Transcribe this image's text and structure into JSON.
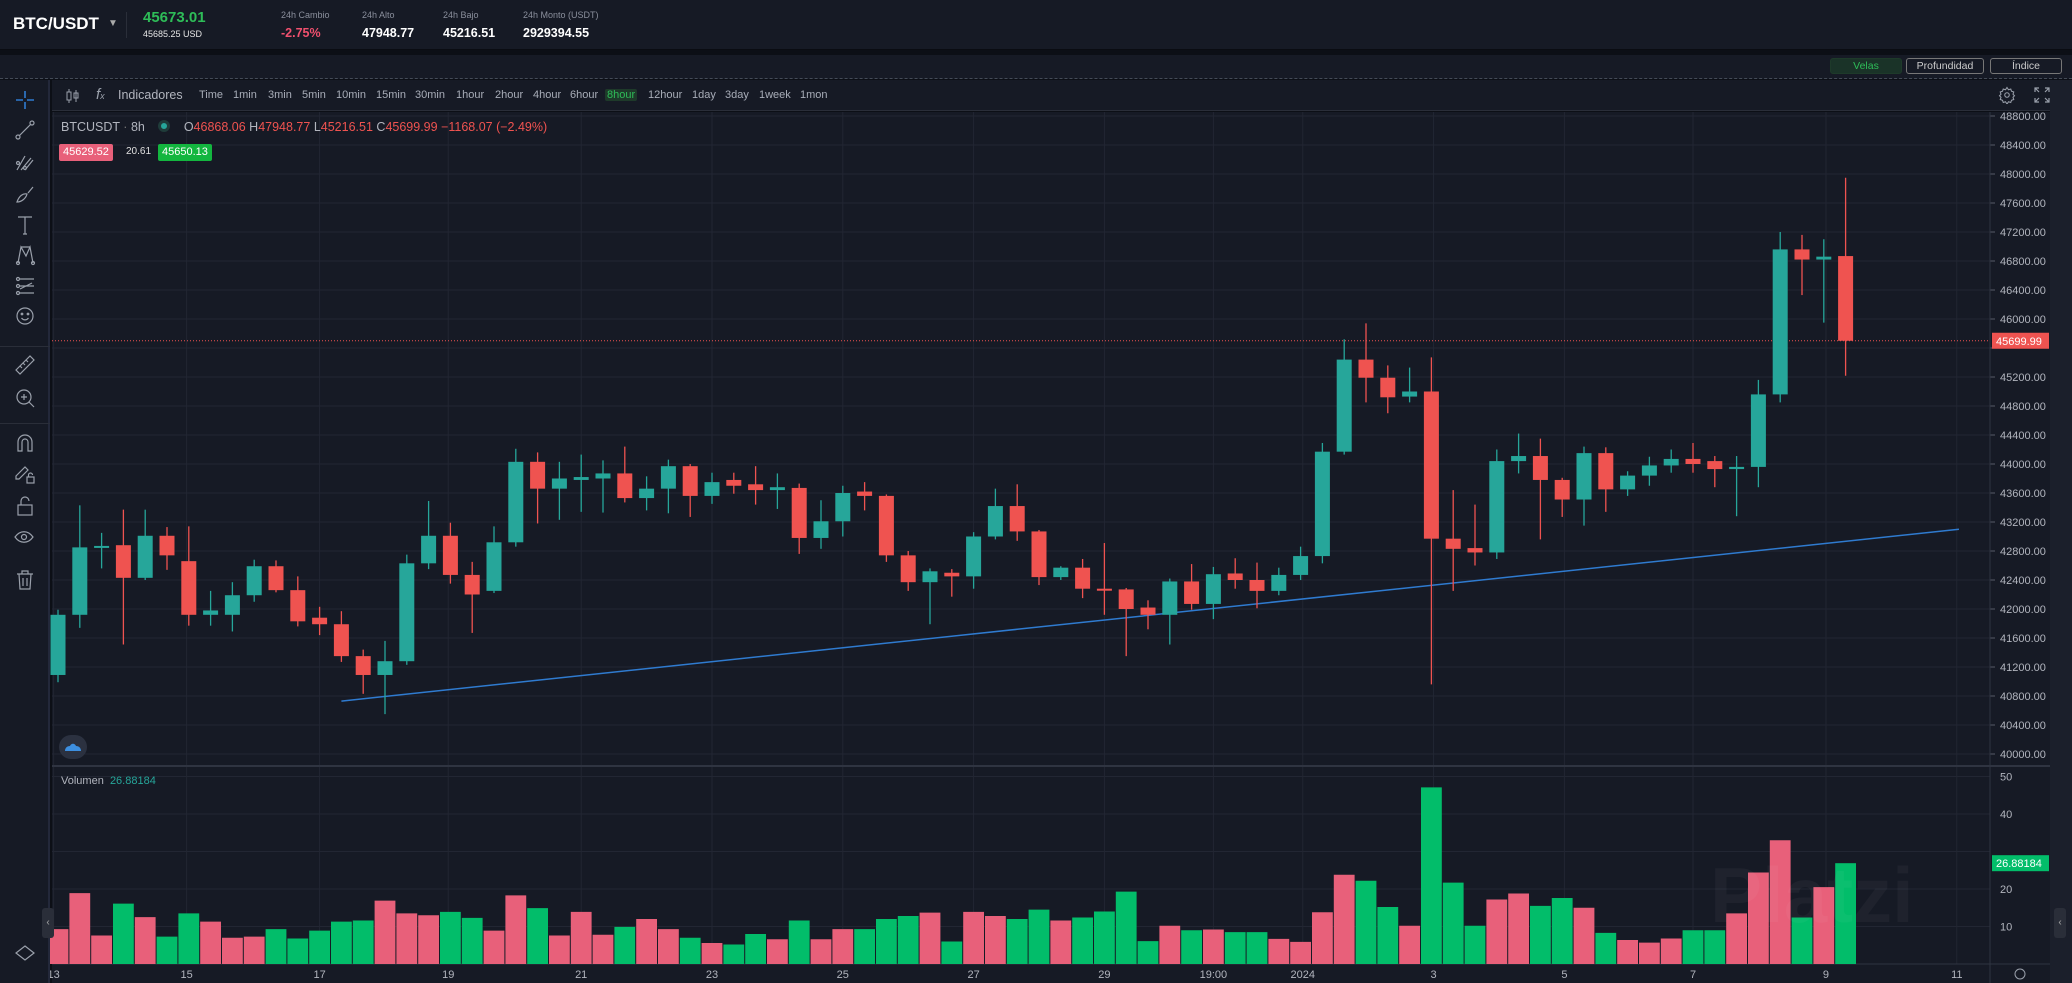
{
  "header": {
    "pair": "BTC/USDT",
    "last_price": "45673.01",
    "last_price_usd": "45685.25 USD",
    "stats": [
      {
        "label": "24h Cambio",
        "value": "-2.75%",
        "color": "#f0506e"
      },
      {
        "label": "24h Alto",
        "value": "47948.77",
        "color": "#ffffff"
      },
      {
        "label": "24h Bajo",
        "value": "45216.51",
        "color": "#ffffff"
      },
      {
        "label": "24h Monto (USDT)",
        "value": "2929394.55",
        "color": "#ffffff"
      }
    ]
  },
  "modes": {
    "velas": "Velas",
    "profundidad": "Profundidad",
    "indice": "Índice"
  },
  "toolbar": {
    "indicators": "Indicadores",
    "timeframes": [
      "Time",
      "1min",
      "3min",
      "5min",
      "10min",
      "15min",
      "30min",
      "1hour",
      "2hour",
      "4hour",
      "6hour",
      "8hour",
      "12hour",
      "1day",
      "3day",
      "1week",
      "1mon"
    ],
    "active_timeframe": "8hour"
  },
  "legend": {
    "symbol": "BTCUSDT",
    "interval": "8h",
    "open_label": "O",
    "open": "46868.06",
    "high_label": "H",
    "high": "47948.77",
    "low_label": "L",
    "low": "45216.51",
    "close_label": "C",
    "close": "45699.99",
    "change": "−1168.07 (−2.49%)",
    "bid": "45629.52",
    "spread": "20.61",
    "ask": "45650.13"
  },
  "volume_legend": {
    "label": "Volumen",
    "value": "26.88184"
  },
  "watermark": "Platzi",
  "colors": {
    "up": "#26a69a",
    "down": "#ef5350",
    "vol_up": "#02bd6a",
    "vol_down": "#e8607a",
    "accent": "#2ebd58",
    "trendline": "#2f7bd0"
  },
  "chart_data": {
    "type": "candlestick",
    "symbol": "BTCUSDT",
    "interval": "8h",
    "price_axis": {
      "min": 40000,
      "max": 48800,
      "step": 400
    },
    "volume_axis": {
      "min": 0,
      "max": 50,
      "ticks": [
        10,
        20,
        30,
        40,
        50
      ]
    },
    "last_price_label": "45699.99",
    "last_volume_label": "26.88184",
    "x_labels": [
      {
        "label": "13",
        "index": -0.2
      },
      {
        "label": "15",
        "index": 5.9
      },
      {
        "label": "17",
        "index": 12
      },
      {
        "label": "19",
        "index": 17.9
      },
      {
        "label": "21",
        "index": 24
      },
      {
        "label": "23",
        "index": 30
      },
      {
        "label": "25",
        "index": 36
      },
      {
        "label": "27",
        "index": 42
      },
      {
        "label": "29",
        "index": 48
      },
      {
        "label": "19:00",
        "index": 53
      },
      {
        "label": "2024",
        "index": 57.1
      },
      {
        "label": "3",
        "index": 63.1
      },
      {
        "label": "5",
        "index": 69.1
      },
      {
        "label": "7",
        "index": 75
      },
      {
        "label": "9",
        "index": 81.1
      },
      {
        "label": "11",
        "index": 87.1
      }
    ],
    "trendline": {
      "start": {
        "index": 13,
        "price": 40730
      },
      "end": {
        "index": 87.2,
        "price": 43100
      }
    },
    "candles": [
      [
        41090,
        41990,
        40990,
        41920
      ],
      [
        41920,
        43430,
        41740,
        42850
      ],
      [
        42850,
        43050,
        42560,
        42870
      ],
      [
        42880,
        43370,
        41510,
        42430
      ],
      [
        42430,
        43370,
        42400,
        43010
      ],
      [
        43010,
        43130,
        42540,
        42740
      ],
      [
        42660,
        43140,
        41770,
        41920
      ],
      [
        41920,
        42250,
        41770,
        41980
      ],
      [
        41920,
        42370,
        41690,
        42190
      ],
      [
        42190,
        42680,
        42100,
        42590
      ],
      [
        42590,
        42670,
        42230,
        42260
      ],
      [
        42260,
        42450,
        41760,
        41830
      ],
      [
        41880,
        42030,
        41640,
        41790
      ],
      [
        41790,
        41970,
        41270,
        41350
      ],
      [
        41350,
        41440,
        40830,
        41090
      ],
      [
        41090,
        41560,
        40550,
        41280
      ],
      [
        41280,
        42750,
        41230,
        42630
      ],
      [
        42630,
        43490,
        42550,
        43010
      ],
      [
        43010,
        43190,
        42350,
        42470
      ],
      [
        42470,
        42650,
        41670,
        42200
      ],
      [
        42250,
        43140,
        42220,
        42920
      ],
      [
        42920,
        44210,
        42860,
        44030
      ],
      [
        44030,
        44160,
        43180,
        43660
      ],
      [
        43660,
        44030,
        43230,
        43800
      ],
      [
        43780,
        44130,
        43340,
        43820
      ],
      [
        43800,
        44050,
        43330,
        43870
      ],
      [
        43870,
        44240,
        43470,
        43530
      ],
      [
        43530,
        43830,
        43360,
        43660
      ],
      [
        43660,
        44060,
        43320,
        43970
      ],
      [
        43970,
        44000,
        43270,
        43560
      ],
      [
        43560,
        43880,
        43450,
        43750
      ],
      [
        43780,
        43880,
        43590,
        43700
      ],
      [
        43720,
        43970,
        43440,
        43640
      ],
      [
        43640,
        43870,
        43380,
        43680
      ],
      [
        43670,
        43730,
        42760,
        42980
      ],
      [
        42980,
        43500,
        42830,
        43210
      ],
      [
        43210,
        43700,
        43000,
        43600
      ],
      [
        43620,
        43750,
        43360,
        43560
      ],
      [
        43560,
        43580,
        42650,
        42740
      ],
      [
        42740,
        42800,
        42250,
        42370
      ],
      [
        42370,
        42560,
        41790,
        42520
      ],
      [
        42500,
        42550,
        42170,
        42450
      ],
      [
        42450,
        43060,
        42280,
        43000
      ],
      [
        43000,
        43660,
        42960,
        43420
      ],
      [
        43420,
        43720,
        42940,
        43070
      ],
      [
        43070,
        43090,
        42330,
        42440
      ],
      [
        42440,
        42590,
        42400,
        42570
      ],
      [
        42570,
        42690,
        42150,
        42280
      ],
      [
        42280,
        42910,
        41920,
        42270
      ],
      [
        42270,
        42290,
        41350,
        42000
      ],
      [
        42020,
        42120,
        41720,
        41920
      ],
      [
        41920,
        42420,
        41510,
        42380
      ],
      [
        42380,
        42620,
        41990,
        42070
      ],
      [
        42070,
        42580,
        41860,
        42480
      ],
      [
        42490,
        42700,
        42280,
        42400
      ],
      [
        42400,
        42640,
        42010,
        42250
      ],
      [
        42250,
        42570,
        42190,
        42470
      ],
      [
        42470,
        42860,
        42400,
        42730
      ],
      [
        42730,
        44290,
        42630,
        44170
      ],
      [
        44170,
        45720,
        44130,
        45440
      ],
      [
        45440,
        45940,
        44850,
        45190
      ],
      [
        45190,
        45360,
        44700,
        44920
      ],
      [
        44930,
        45330,
        44850,
        45000
      ],
      [
        45000,
        45470,
        40960,
        42970
      ],
      [
        42970,
        43640,
        42250,
        42830
      ],
      [
        42840,
        43440,
        42600,
        42780
      ],
      [
        42780,
        44200,
        42690,
        44040
      ],
      [
        44040,
        44420,
        43870,
        44110
      ],
      [
        44110,
        44350,
        42960,
        43780
      ],
      [
        43780,
        43810,
        43270,
        43510
      ],
      [
        43510,
        44240,
        43150,
        44150
      ],
      [
        44150,
        44230,
        43340,
        43650
      ],
      [
        43650,
        43900,
        43560,
        43840
      ],
      [
        43840,
        44100,
        43700,
        43980
      ],
      [
        43980,
        44200,
        43880,
        44070
      ],
      [
        44070,
        44290,
        43880,
        44000
      ],
      [
        44040,
        44110,
        43680,
        43930
      ],
      [
        43930,
        44110,
        43280,
        43960
      ],
      [
        43960,
        45160,
        43680,
        44960
      ],
      [
        44960,
        47200,
        44850,
        46960
      ],
      [
        46960,
        47160,
        46330,
        46820
      ],
      [
        46820,
        47100,
        45950,
        46860
      ],
      [
        46868.06,
        47948.77,
        45216.51,
        45699.99
      ]
    ],
    "volumes": [
      [
        9.3,
        "d"
      ],
      [
        18.9,
        "d"
      ],
      [
        7.6,
        "d"
      ],
      [
        16.1,
        "u"
      ],
      [
        12.5,
        "d"
      ],
      [
        7.3,
        "u"
      ],
      [
        13.5,
        "u"
      ],
      [
        11.3,
        "d"
      ],
      [
        7.0,
        "d"
      ],
      [
        7.3,
        "d"
      ],
      [
        9.3,
        "u"
      ],
      [
        6.8,
        "u"
      ],
      [
        8.9,
        "u"
      ],
      [
        11.3,
        "u"
      ],
      [
        11.6,
        "u"
      ],
      [
        16.9,
        "d"
      ],
      [
        13.5,
        "d"
      ],
      [
        13.0,
        "d"
      ],
      [
        13.9,
        "u"
      ],
      [
        12.3,
        "u"
      ],
      [
        8.9,
        "d"
      ],
      [
        18.3,
        "d"
      ],
      [
        14.9,
        "u"
      ],
      [
        7.6,
        "d"
      ],
      [
        13.9,
        "d"
      ],
      [
        7.8,
        "d"
      ],
      [
        9.9,
        "u"
      ],
      [
        12.0,
        "d"
      ],
      [
        9.3,
        "d"
      ],
      [
        7.0,
        "u"
      ],
      [
        5.6,
        "d"
      ],
      [
        5.2,
        "u"
      ],
      [
        8.0,
        "u"
      ],
      [
        6.6,
        "d"
      ],
      [
        11.6,
        "u"
      ],
      [
        6.6,
        "d"
      ],
      [
        9.3,
        "d"
      ],
      [
        9.3,
        "u"
      ],
      [
        12.0,
        "u"
      ],
      [
        12.8,
        "u"
      ],
      [
        13.7,
        "d"
      ],
      [
        6.0,
        "u"
      ],
      [
        13.9,
        "d"
      ],
      [
        12.8,
        "d"
      ],
      [
        12.0,
        "u"
      ],
      [
        14.5,
        "u"
      ],
      [
        11.6,
        "d"
      ],
      [
        12.4,
        "u"
      ],
      [
        14.0,
        "u"
      ],
      [
        19.3,
        "u"
      ],
      [
        6.1,
        "u"
      ],
      [
        10.2,
        "d"
      ],
      [
        9.0,
        "u"
      ],
      [
        9.2,
        "d"
      ],
      [
        8.5,
        "u"
      ],
      [
        8.5,
        "u"
      ],
      [
        6.7,
        "d"
      ],
      [
        5.9,
        "d"
      ],
      [
        13.8,
        "d"
      ],
      [
        23.8,
        "d"
      ],
      [
        22.2,
        "u"
      ],
      [
        15.2,
        "u"
      ],
      [
        10.2,
        "d"
      ],
      [
        47.1,
        "u"
      ],
      [
        21.7,
        "u"
      ],
      [
        10.2,
        "u"
      ],
      [
        17.2,
        "d"
      ],
      [
        18.8,
        "d"
      ],
      [
        15.5,
        "u"
      ],
      [
        17.6,
        "u"
      ],
      [
        15.0,
        "d"
      ],
      [
        8.3,
        "u"
      ],
      [
        6.4,
        "d"
      ],
      [
        5.7,
        "d"
      ],
      [
        6.8,
        "d"
      ],
      [
        9.0,
        "u"
      ],
      [
        9.0,
        "u"
      ],
      [
        13.5,
        "d"
      ],
      [
        24.4,
        "d"
      ],
      [
        33.0,
        "d"
      ],
      [
        12.4,
        "u"
      ],
      [
        20.5,
        "d"
      ],
      [
        26.88184,
        "u"
      ]
    ]
  }
}
